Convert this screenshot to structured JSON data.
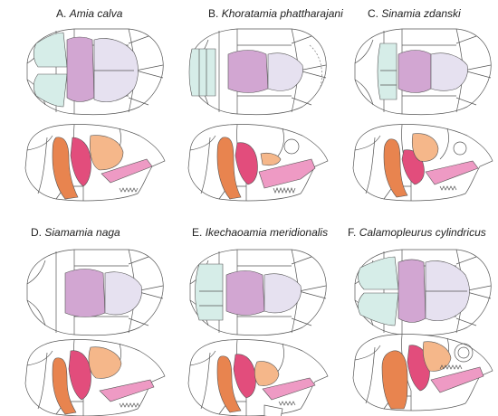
{
  "figure": {
    "panels": [
      {
        "letter": "A.",
        "title": "Amia calva"
      },
      {
        "letter": "B.",
        "title": "Khoratamia phattharajani"
      },
      {
        "letter": "C.",
        "title": "Sinamia zdanski"
      },
      {
        "letter": "D.",
        "title": "Siamamia naga"
      },
      {
        "letter": "E.",
        "title": "Ikechaoamia meridionalis"
      },
      {
        "letter": "F.",
        "title": "Calamopleurus cylindricus"
      }
    ],
    "colors": {
      "teal_bone": "#d6ede8",
      "lavender_bone": "#e6e1f0",
      "purple_bone": "#d2a6d2",
      "orange_bone": "#e8844f",
      "peach_bone": "#f5b78a",
      "magenta_bone": "#e24d7c",
      "pink_bone": "#ee9ac4",
      "outline": "#555555"
    }
  }
}
